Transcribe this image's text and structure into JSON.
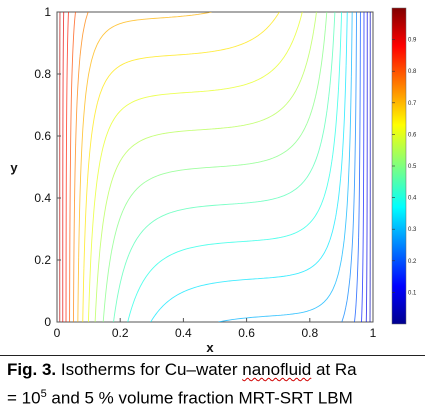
{
  "chart_data": {
    "type": "contour",
    "xlabel": "x",
    "ylabel": "y",
    "xlim": [
      0,
      1
    ],
    "ylim": [
      0,
      1
    ],
    "x_ticks": [
      "0",
      "0.2",
      "0.4",
      "0.6",
      "0.8",
      "1"
    ],
    "y_ticks": [
      "0",
      "0.2",
      "0.4",
      "0.6",
      "0.8",
      "1"
    ],
    "colorbar": {
      "range": [
        0,
        1
      ],
      "tick_labels": [
        "0.1",
        "0.2",
        "0.3",
        "0.4",
        "0.5",
        "0.6",
        "0.7",
        "0.8",
        "0.9"
      ]
    },
    "contour_levels": [
      0.05,
      0.1,
      0.15,
      0.2,
      0.25,
      0.3,
      0.35,
      0.4,
      0.45,
      0.5,
      0.55,
      0.6,
      0.65,
      0.7,
      0.75,
      0.8,
      0.85,
      0.9,
      0.95
    ]
  },
  "caption": {
    "fig_label": "Fig. 3.",
    "text_before": " Isotherms for Cu–water ",
    "squiggle_word": "nanofluid",
    "text_after": " at Ra",
    "line2_prefix": "= 10",
    "exponent": "5",
    "line2_rest": " and 5 % volume fraction MRT-SRT LBM"
  }
}
